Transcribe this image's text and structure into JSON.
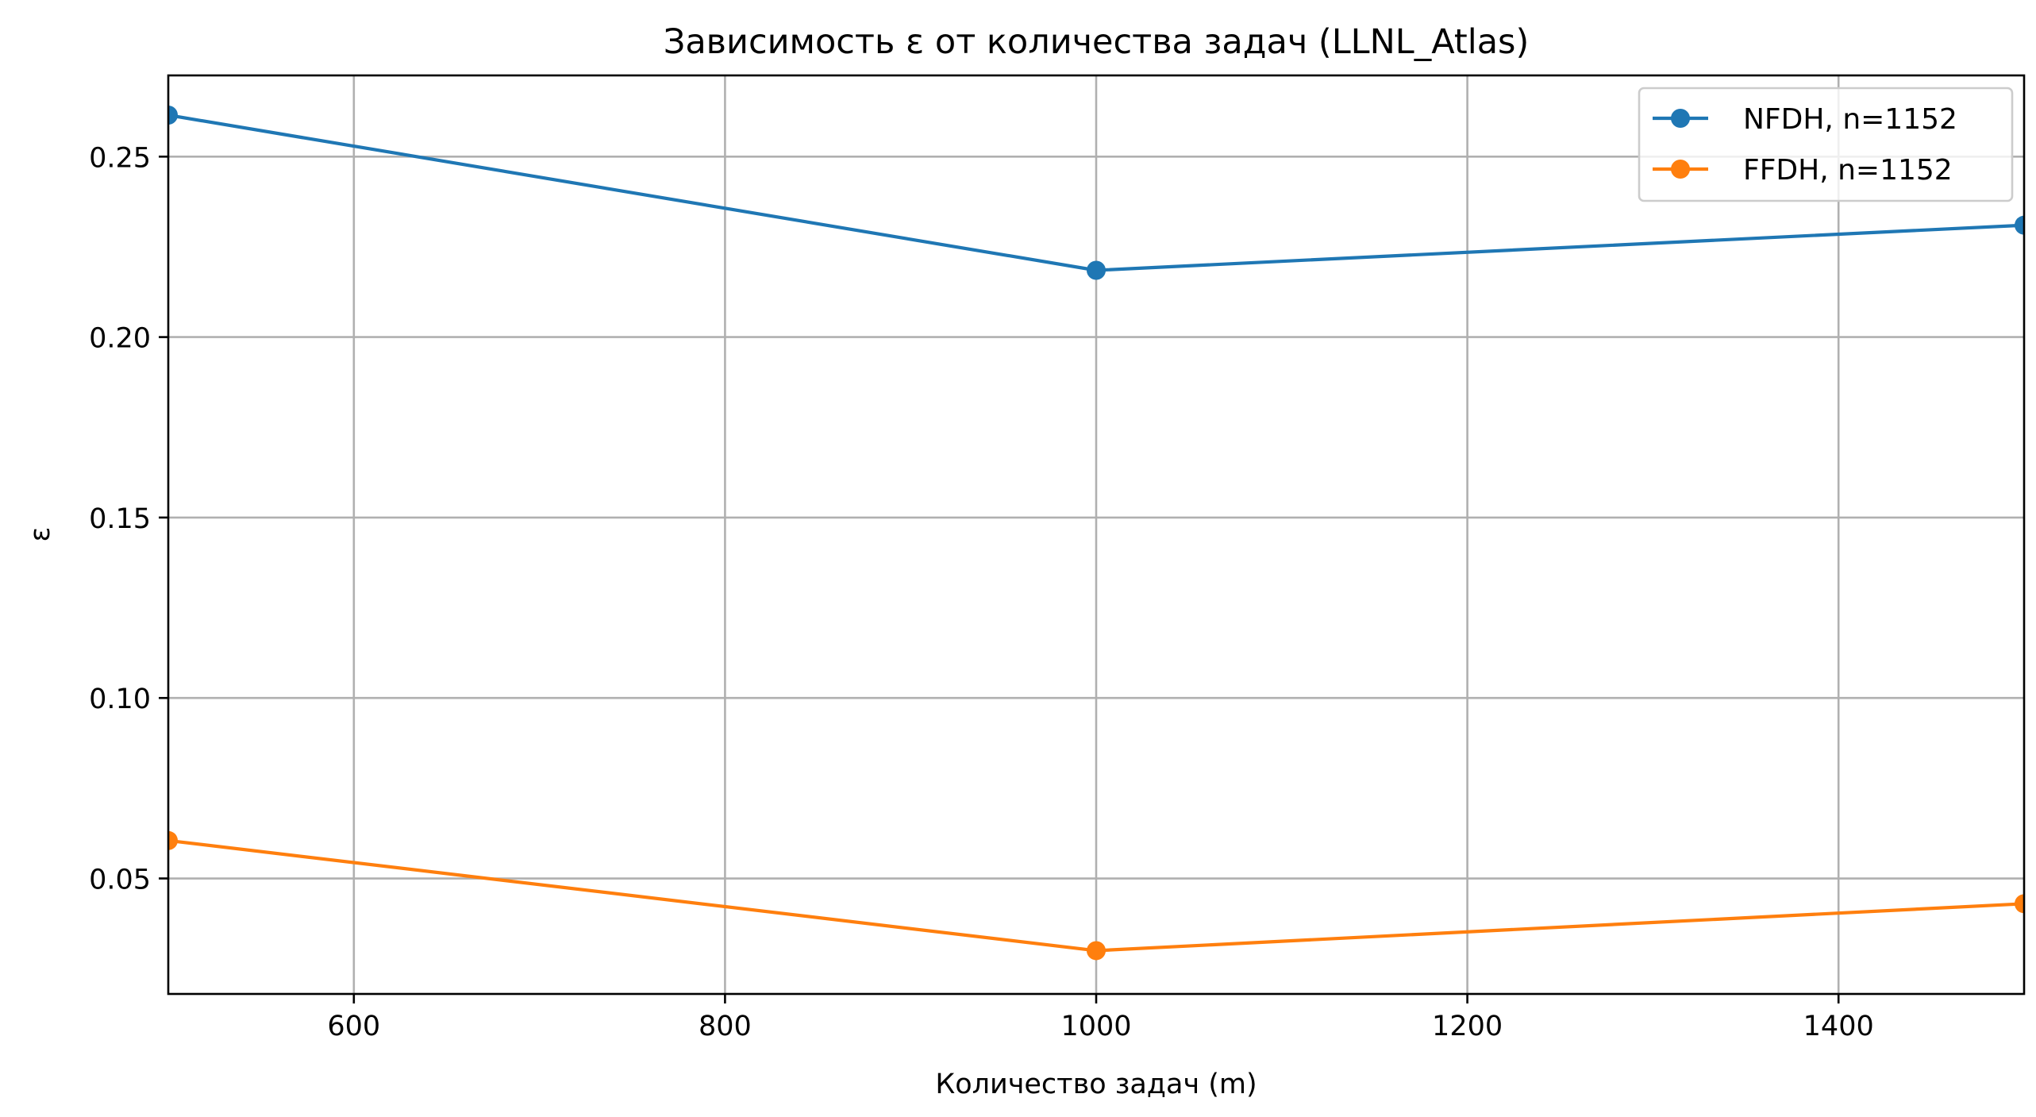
{
  "chart_data": {
    "type": "line",
    "title": "Зависимость ε от количества задач (LLNL_Atlas)",
    "xlabel": "Количество задач (m)",
    "ylabel": "ε",
    "x": [
      500,
      1000,
      1500
    ],
    "xlim": [
      500,
      1500
    ],
    "ylim": [
      0.018,
      0.2725
    ],
    "xticks": [
      600,
      800,
      1000,
      1200,
      1400
    ],
    "yticks": [
      0.05,
      0.1,
      0.15,
      0.2,
      0.25
    ],
    "grid": true,
    "legend_position": "top-right",
    "series": [
      {
        "name": "NFDH, n=1152",
        "color": "#1f77b4",
        "values": [
          0.2615,
          0.2185,
          0.231
        ]
      },
      {
        "name": "FFDH, n=1152",
        "color": "#ff7f0e",
        "values": [
          0.0605,
          0.03,
          0.043
        ]
      }
    ]
  }
}
